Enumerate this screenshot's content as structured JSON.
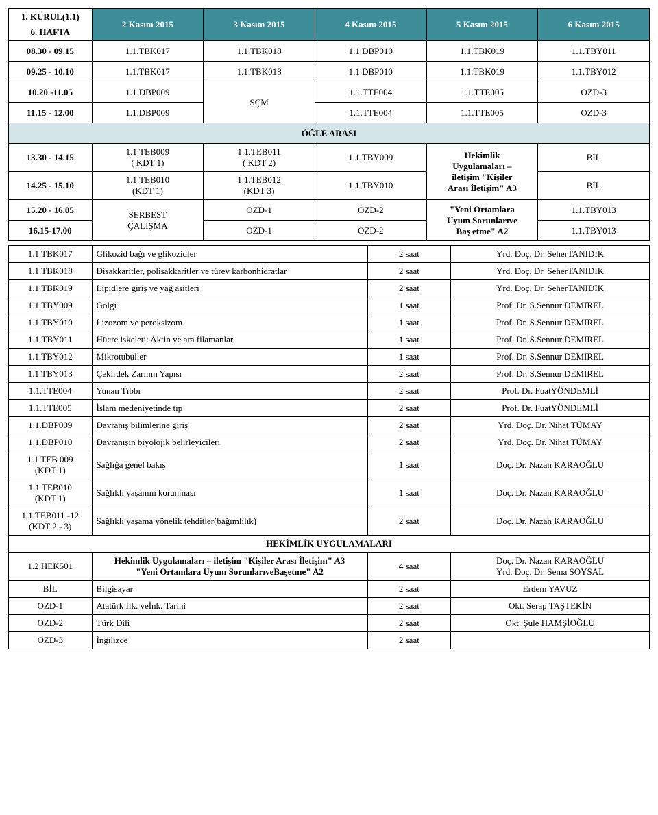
{
  "colors": {
    "teal": "#3e8e9a",
    "lightTeal": "#d3e5e9",
    "border": "#000000",
    "text": "#000000",
    "bg": "#ffffff"
  },
  "header": {
    "kurul": "1. KURUL(1.1)",
    "week": "6. HAFTA",
    "dates": [
      "2 Kasım 2015",
      "3 Kasım 2015",
      "4 Kasım 2015",
      "5 Kasım 2015",
      "6 Kasım 2015"
    ]
  },
  "schedule": {
    "rows": [
      {
        "time": "08.30 - 09.15",
        "cells": [
          "1.1.TBK017",
          "1.1.TBK018",
          "1.1.DBP010",
          "1.1.TBK019",
          "1.1.TBY011"
        ]
      },
      {
        "time": "09.25 - 10.10",
        "cells": [
          "1.1.TBK017",
          "1.1.TBK018",
          "1.1.DBP010",
          "1.1.TBK019",
          "1.1.TBY012"
        ]
      },
      {
        "time": "10.20 -11.05",
        "cells": [
          "1.1.DBP009",
          null,
          "1.1.TTE004",
          "1.1.TTE005",
          "OZD-3"
        ]
      },
      {
        "time": "11.15 - 12.00",
        "cells": [
          "1.1.DBP009",
          "SÇM",
          "1.1.TTE004",
          "1.1.TTE005",
          "OZD-3"
        ]
      }
    ],
    "lunch": "ÖĞLE ARASI",
    "afternoon": [
      {
        "time": "13.30 - 14.15",
        "c1": "1.1.TEB009\n( KDT 1)",
        "c2": "1.1.TEB011\n( KDT 2)",
        "c3": "1.1.TBY009",
        "c5": "BİL"
      },
      {
        "time": "14.25 - 15.10",
        "c1": "1.1.TEB010\n(KDT 1)",
        "c2": "1.1.TEB012\n(KDT 3)",
        "c3": "1.1.TBY010",
        "c5": "BİL"
      },
      {
        "time": "15.20 - 16.05",
        "c2": "OZD-1",
        "c3": "OZD-2",
        "c5": "1.1.TBY013"
      },
      {
        "time": "16.15-17.00",
        "c2": "OZD-1",
        "c3": "OZD-2",
        "c5": "1.1.TBY013"
      }
    ],
    "mergedCol1_34": "SERBEST\nÇALIŞMA",
    "mergedCol4_12": "Hekimlik\nUygulamaları –\niletişim \"Kişiler\nArası İletişim\" A3",
    "mergedCol4_34": "\"Yeni Ortamlara\nUyum Sorunlarıve\nBaş etme\" A2"
  },
  "details": [
    {
      "code": "1.1.TBK017",
      "title": "Glikozid bağı ve glikozidler",
      "dur": "2 saat",
      "inst": "Yrd. Doç. Dr. SeherTANIDIK"
    },
    {
      "code": "1.1.TBK018",
      "title": "Disakkaritler, polisakkaritler ve türev karbonhidratlar",
      "dur": "2 saat",
      "inst": "Yrd. Doç. Dr. SeherTANIDIK"
    },
    {
      "code": "1.1.TBK019",
      "title": "Lipidlere giriş ve yağ asitleri",
      "dur": "2 saat",
      "inst": "Yrd. Doç. Dr. SeherTANIDIK"
    },
    {
      "code": "1.1.TBY009",
      "title": "Golgi",
      "dur": "1 saat",
      "inst": "Prof. Dr. S.Sennur DEMIREL"
    },
    {
      "code": "1.1.TBY010",
      "title": "Lizozom ve peroksizom",
      "dur": "1 saat",
      "inst": "Prof. Dr. S.Sennur DEMIREL"
    },
    {
      "code": "1.1.TBY011",
      "title": "Hücre iskeleti: Aktin ve ara filamanlar",
      "dur": "1 saat",
      "inst": "Prof. Dr. S.Sennur DEMIREL"
    },
    {
      "code": "1.1.TBY012",
      "title": "Mikrotubuller",
      "dur": "1 saat",
      "inst": "Prof. Dr. S.Sennur DEMIREL"
    },
    {
      "code": "1.1.TBY013",
      "title": "Çekirdek Zarının Yapısı",
      "dur": "2 saat",
      "inst": "Prof. Dr. S.Sennur DEMIREL"
    },
    {
      "code": "1.1.TTE004",
      "title": "Yunan Tıbbı",
      "dur": "2 saat",
      "inst": "Prof. Dr. FuatYÖNDEMLİ"
    },
    {
      "code": "1.1.TTE005",
      "title": "İslam medeniyetinde tıp",
      "dur": "2 saat",
      "inst": "Prof. Dr. FuatYÖNDEMLİ"
    },
    {
      "code": "1.1.DBP009",
      "title": "Davranış bilimlerine giriş",
      "dur": "2 saat",
      "inst": "Yrd. Doç. Dr. Nihat TÜMAY"
    },
    {
      "code": "1.1.DBP010",
      "title": "Davranışın biyolojik belirleyicileri",
      "dur": "2 saat",
      "inst": "Yrd. Doç. Dr. Nihat TÜMAY"
    },
    {
      "code": "1.1 TEB 009\n(KDT 1)",
      "title": "Sağlığa genel bakış",
      "dur": "1 saat",
      "inst": "Doç. Dr. Nazan KARAOĞLU"
    },
    {
      "code": "1.1 TEB010\n(KDT 1)",
      "title": "Sağlıklı yaşamın korunması",
      "dur": "1 saat",
      "inst": "Doç. Dr. Nazan KARAOĞLU"
    },
    {
      "code": "1.1.TEB011 -12\n(KDT 2 - 3)",
      "title": "Sağlıklı yaşama yönelik tehditler(bağımlılık)",
      "dur": "2 saat",
      "inst": "Doç. Dr. Nazan KARAOĞLU"
    }
  ],
  "sectionHead": "HEKİMLİK UYGULAMALARI",
  "hek": {
    "code": "1.2.HEK501",
    "title": "Hekimlik Uygulamaları – iletişim \"Kişiler Arası İletişim\" A3\n\"Yeni Ortamlara Uyum SorunlarıveBaşetme\" A2",
    "dur": "4 saat",
    "inst": "Doç. Dr. Nazan KARAOĞLU\nYrd. Doç. Dr. Sema SOYSAL"
  },
  "footer": [
    {
      "code": "BİL",
      "title": "Bilgisayar",
      "dur": "2 saat",
      "inst": "Erdem YAVUZ"
    },
    {
      "code": "OZD-1",
      "title": "Atatürk İlk. veİnk. Tarihi",
      "dur": "2 saat",
      "inst": "Okt. Serap TAŞTEKİN"
    },
    {
      "code": "OZD-2",
      "title": "Türk Dili",
      "dur": "2 saat",
      "inst": "Okt. Şule HAMŞİOĞLU"
    },
    {
      "code": "OZD-3",
      "title": "İngilizce",
      "dur": "2 saat",
      "inst": ""
    }
  ]
}
